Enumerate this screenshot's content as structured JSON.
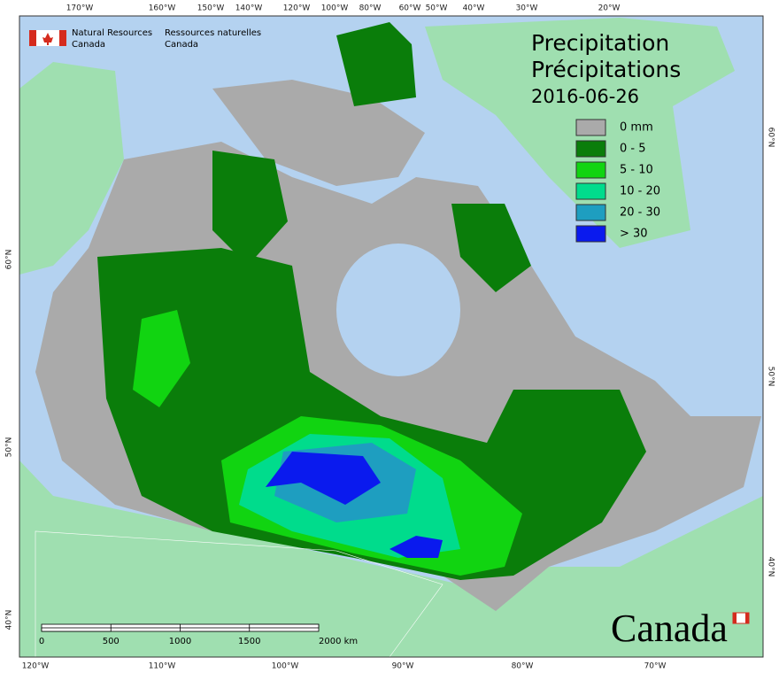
{
  "header": {
    "agency_en": [
      "Natural Resources",
      "Canada"
    ],
    "agency_fr": [
      "Ressources naturelles",
      "Canada"
    ]
  },
  "title": {
    "en": "Precipitation",
    "fr": "Précipitations",
    "date": "2016-06-26"
  },
  "legend": [
    {
      "label": "0 mm",
      "color": "#aaaaaa"
    },
    {
      "label": "0 - 5",
      "color": "#0a7d0a"
    },
    {
      "label": "5 - 10",
      "color": "#11d411"
    },
    {
      "label": "10 - 20",
      "color": "#00dc8c"
    },
    {
      "label": "20 - 30",
      "color": "#1e9ec0"
    },
    {
      "label": "> 30",
      "color": "#0a1aee"
    }
  ],
  "graticule": {
    "top": [
      "170°W",
      "160°W",
      "150°W",
      "140°W",
      "120°W",
      "100°W",
      "80°W",
      "60°W",
      "50°W",
      "40°W",
      "30°W",
      "20°W"
    ],
    "bottom": [
      "120°W",
      "110°W",
      "100°W",
      "90°W",
      "80°W",
      "70°W"
    ],
    "left": [
      "60°N",
      "50°N",
      "40°N"
    ],
    "right": [
      "60°N",
      "50°N",
      "40°N"
    ]
  },
  "scale_bar": {
    "labels": [
      "0",
      "500",
      "1000",
      "1500",
      "2000 km"
    ]
  },
  "wordmark": "Canada"
}
